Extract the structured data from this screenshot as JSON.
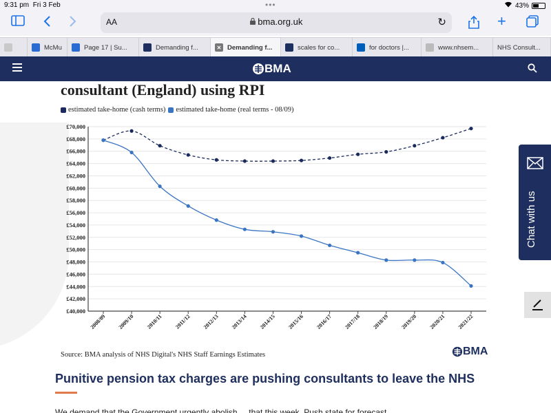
{
  "status": {
    "time": "9:31 pm",
    "date": "Fri 3 Feb",
    "battery": "43%",
    "battery_level": 0.43
  },
  "toolbar": {
    "aa": "AA",
    "url": "bma.org.uk"
  },
  "tabs": [
    {
      "label": "",
      "icon": "w",
      "color": "#c9c9c9",
      "active": false
    },
    {
      "label": "McMu",
      "icon": "m",
      "color": "#2a6bd1",
      "active": false
    },
    {
      "label": "Page 17 | Su...",
      "icon": "p",
      "color": "#2a6bd1",
      "active": false
    },
    {
      "label": "Demanding f...",
      "icon": "b",
      "color": "#1e2f5f",
      "active": false
    },
    {
      "label": "Demanding f...",
      "icon": "x",
      "color": "#777",
      "active": true
    },
    {
      "label": "scales for co...",
      "icon": "b",
      "color": "#1e2f5f",
      "active": false
    },
    {
      "label": "for doctors |...",
      "icon": "n",
      "color": "#005eb8",
      "active": false
    },
    {
      "label": "www.nhsem...",
      "icon": "n",
      "color": "#bbb",
      "active": false
    },
    {
      "label": "NHS Consult...",
      "icon": "",
      "color": "",
      "active": false
    }
  ],
  "site": {
    "logo": "BMA"
  },
  "content": {
    "heading": "consultant (England) using RPI",
    "source": "Source: BMA analysis of NHS Digital's NHS Staff Earnings Estimates",
    "logo": "BMA",
    "article_title": "Punitive pension tax charges are pushing consultants to leave the NHS",
    "body_start": "We demand that the Government urgently abolish ... that this week. Push state for forecast"
  },
  "chat": {
    "label": "Chat with us"
  },
  "colors": {
    "navy": "#1e2f5f",
    "series_cash": "#1b2a5c",
    "series_real": "#3a75c4",
    "accent": "#e07a4a"
  },
  "chart_data": {
    "type": "line",
    "categories": [
      "2008/09",
      "2009/10",
      "2010/11",
      "2011/12",
      "2012/13",
      "2013/14",
      "2014/15",
      "2015/16",
      "2016/17",
      "2017/18",
      "2018/19",
      "2019/20",
      "2020/21",
      "2021/22"
    ],
    "series": [
      {
        "name": "estimated take-home (cash terms)",
        "style": "dashed",
        "color": "#1b2a5c",
        "values": [
          67800,
          69300,
          66900,
          65400,
          64600,
          64400,
          64400,
          64500,
          64900,
          65500,
          65900,
          66900,
          68200,
          69700
        ]
      },
      {
        "name": "estimated take-home (real terms - 08/09)",
        "style": "solid",
        "color": "#3a75c4",
        "values": [
          67800,
          65800,
          60300,
          57100,
          54800,
          53300,
          52900,
          52200,
          50700,
          49500,
          48300,
          48300,
          47900,
          44100
        ]
      }
    ],
    "yticks": [
      "£40,000",
      "£42,000",
      "£44,000",
      "£46,000",
      "£48,000",
      "£50,000",
      "£52,000",
      "£54,000",
      "£56,000",
      "£58,000",
      "£60,000",
      "£62,000",
      "£64,000",
      "£66,000",
      "£68,000",
      "£70,000"
    ],
    "ylim": [
      40000,
      70000
    ],
    "grid": true,
    "legend_position": "top-left"
  }
}
